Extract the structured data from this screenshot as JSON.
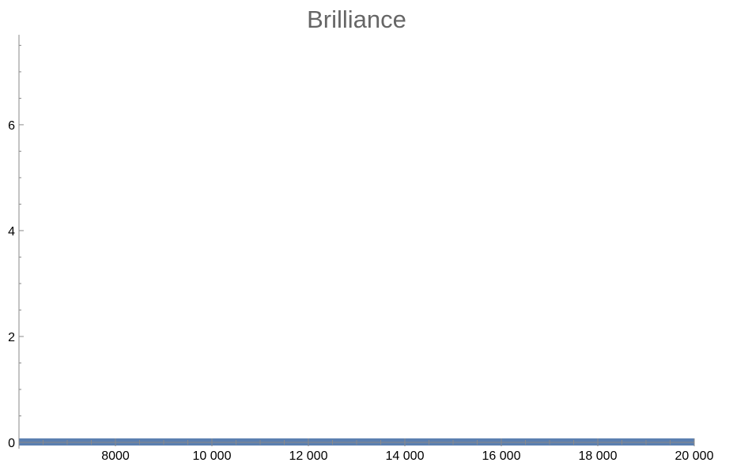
{
  "chart_data": {
    "type": "area",
    "title": "Brilliance",
    "xlabel": "",
    "ylabel": "",
    "xlim": [
      6000,
      20000
    ],
    "ylim": [
      0,
      7.7
    ],
    "x_ticks": [
      8000,
      10000,
      12000,
      14000,
      16000,
      18000,
      20000
    ],
    "x_tick_labels": [
      "8000",
      "10 000",
      "12 000",
      "14 000",
      "16 000",
      "18 000",
      "20 000"
    ],
    "y_ticks": [
      0,
      2,
      4,
      6
    ],
    "y_tick_labels": [
      "0",
      "2",
      "4",
      "6"
    ],
    "series": [
      {
        "color": "#5b7fb0",
        "x": [
          6000,
          8000,
          10000,
          12000,
          14000,
          16000,
          18000,
          20000
        ],
        "y": [
          0.05,
          0.05,
          0.05,
          0.05,
          0.05,
          0.05,
          0.05,
          0.05
        ]
      }
    ],
    "grid": false
  }
}
